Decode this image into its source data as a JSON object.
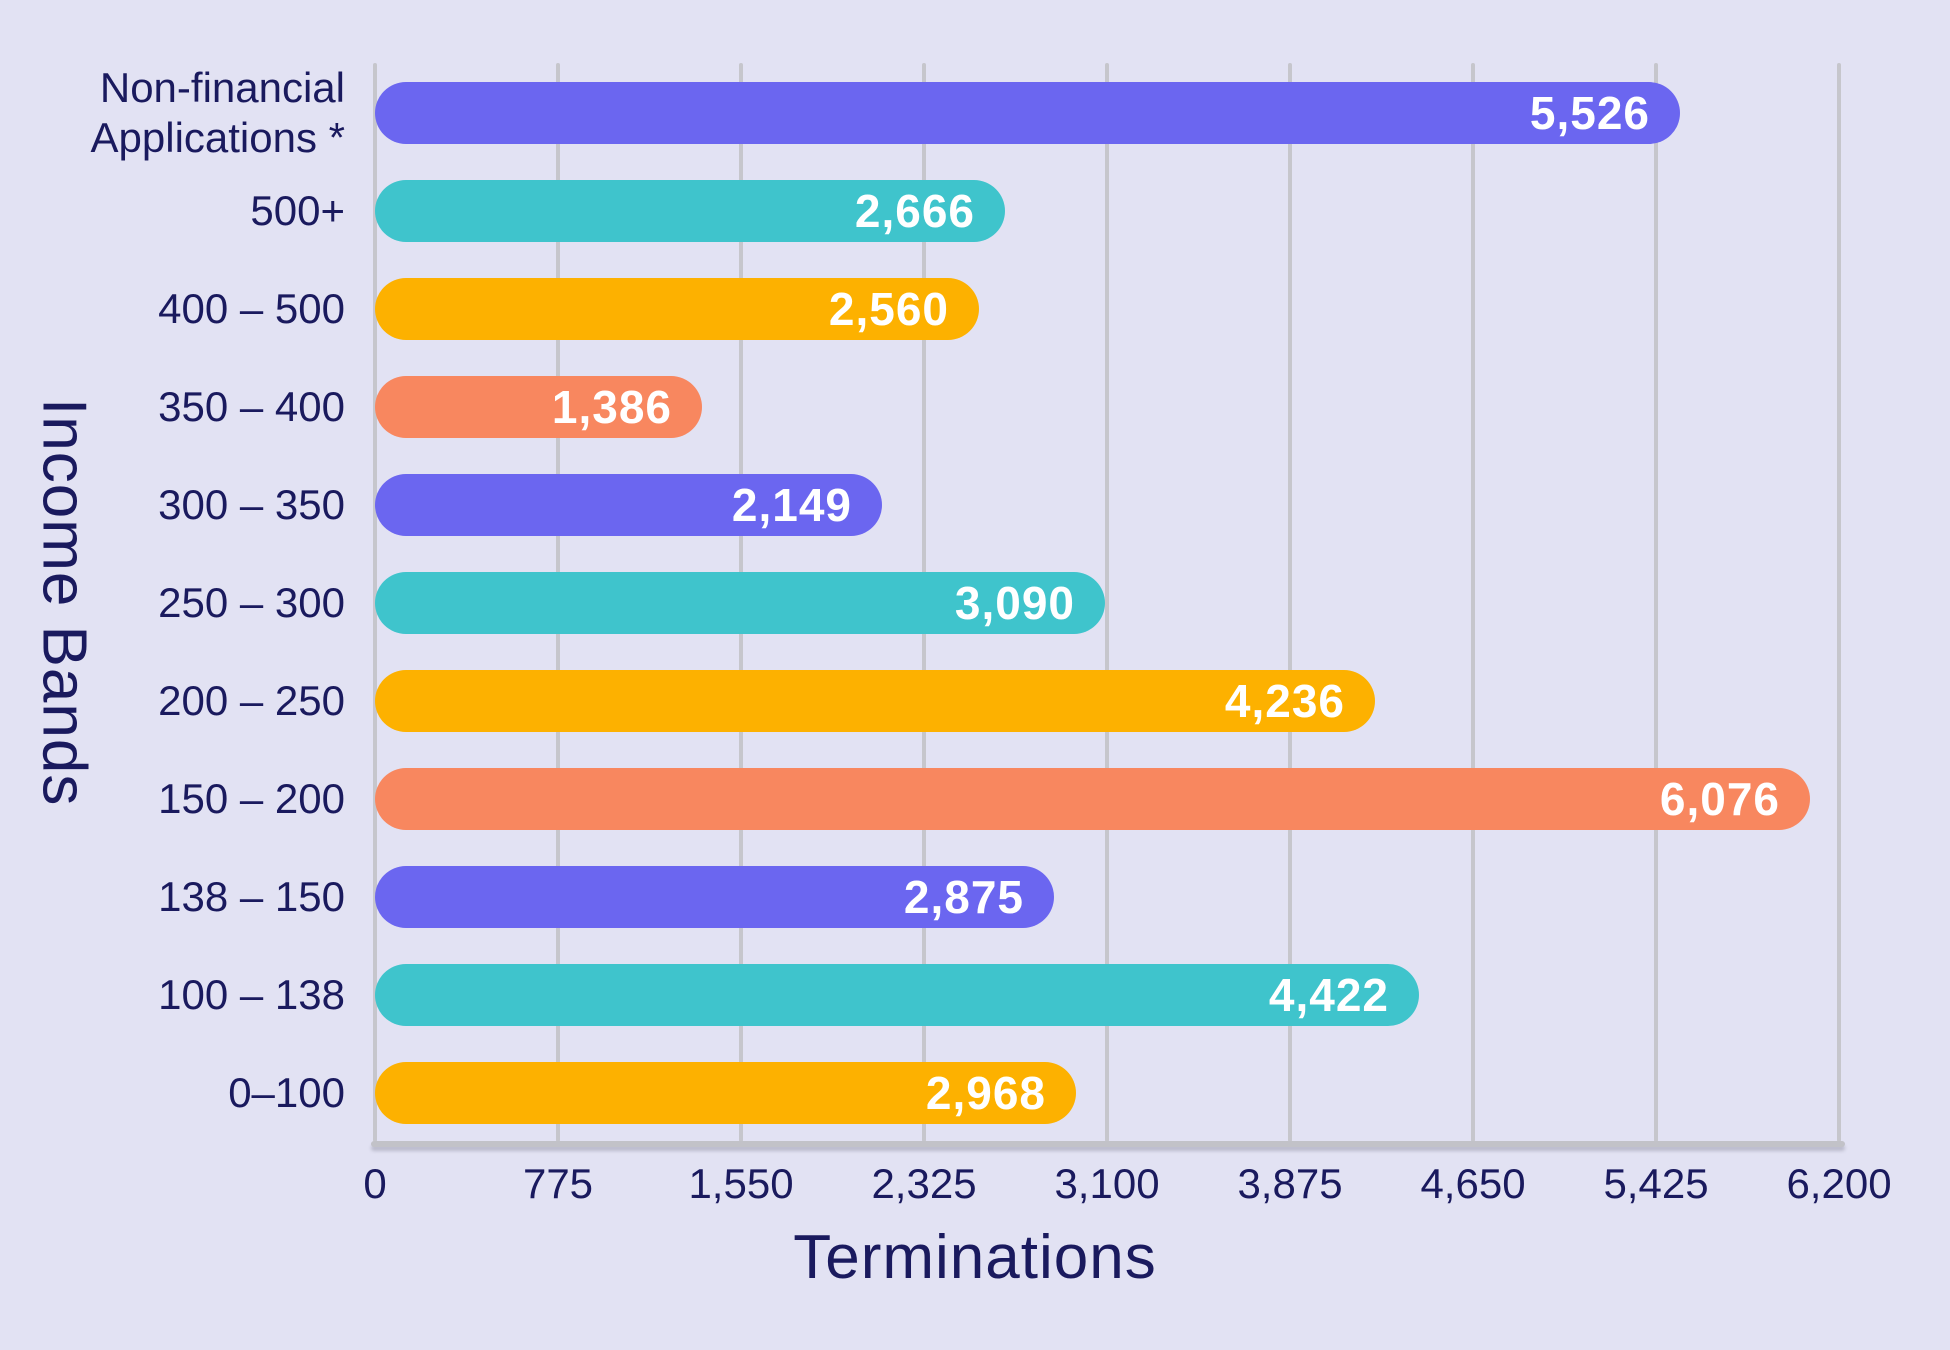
{
  "figure": {
    "background_color": "#E2E2F3",
    "text_color": "#1A1A5E",
    "grid_color": "#C6C6CC",
    "axis_line_color": "#C2C2C8",
    "value_label_color": "#FFFFFF"
  },
  "chart_data": {
    "type": "bar",
    "orientation": "horizontal",
    "title": "",
    "xlabel": "Terminations",
    "ylabel": "Income Bands",
    "categories": [
      "Non-financial\nApplications *",
      "500+",
      "400 – 500",
      "350 – 400",
      "300 – 350",
      "250 – 300",
      "200 – 250",
      "150 – 200",
      "138 – 150",
      "100 – 138",
      "0–100"
    ],
    "values": [
      5526,
      2666,
      2560,
      1386,
      2149,
      3090,
      4236,
      6076,
      2875,
      4422,
      2968
    ],
    "value_labels": [
      "5,526",
      "2,666",
      "2,560",
      "1,386",
      "2,149",
      "3,090",
      "4,236",
      "6,076",
      "2,875",
      "4,422",
      "2,968"
    ],
    "bar_colors": [
      "#6B66F0",
      "#3FC4CC",
      "#FDB100",
      "#F8875F",
      "#6B66F0",
      "#3FC4CC",
      "#FDB100",
      "#F8875F",
      "#6B66F0",
      "#3FC4CC",
      "#FDB100"
    ],
    "palette": {
      "purple": "#6B66F0",
      "teal": "#3FC4CC",
      "amber": "#FDB100",
      "salmon": "#F8875F"
    },
    "x_ticks": [
      0,
      775,
      1550,
      2325,
      3100,
      3875,
      4650,
      5425,
      6200
    ],
    "x_tick_labels": [
      "0",
      "775",
      "1,550",
      "2,325",
      "3,100",
      "3,875",
      "4,650",
      "5,425",
      "6,200"
    ],
    "xlim": [
      0,
      6200
    ],
    "grid": "vertical",
    "legend": "none"
  }
}
